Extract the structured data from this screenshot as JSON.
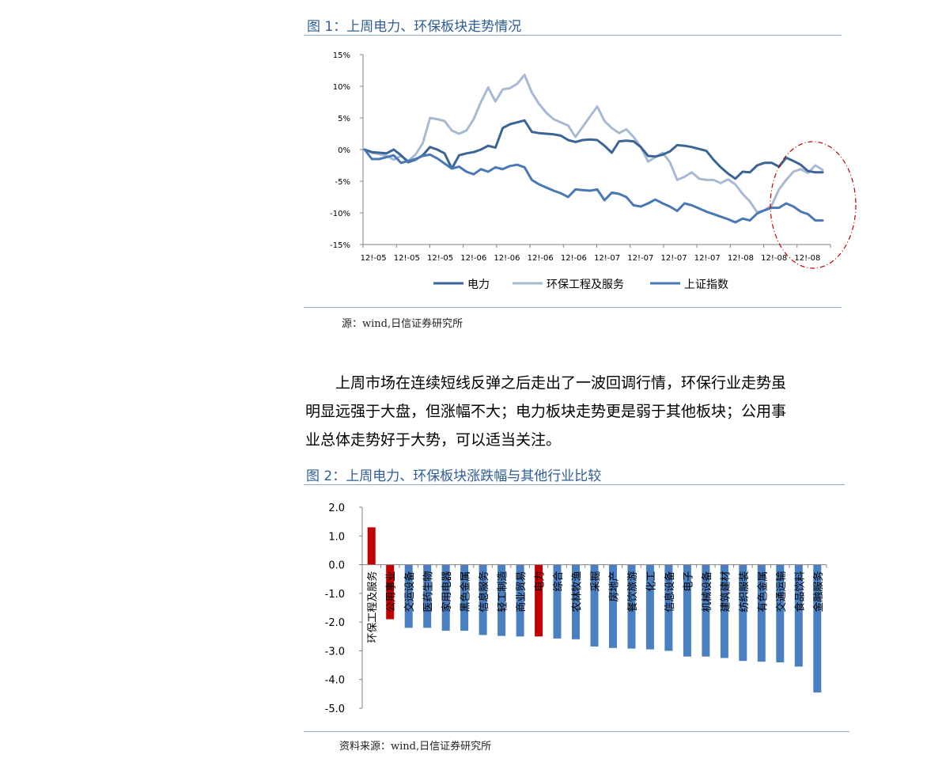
{
  "figure1": {
    "title": "图 1：上周电力、环保板块走势情况",
    "source": "源：wind,日信证券研究所"
  },
  "paragraph": {
    "lines": [
      "上周市场在连续短线反弹之后走出了一波回调行情，环保行业走势虽",
      "明显远强于大盘，但涨幅不大；电力板块走势更是弱于其他板块；公用事",
      "业总体走势好于大势，可以适当关注。"
    ]
  },
  "figure2": {
    "title": "图 2：上周电力、环保板块涨跌幅与其他行业比较",
    "source": "资料来源：wind,日信证券研究所"
  },
  "colors": {
    "dianli": "#3a6595",
    "huanbao": "#a7bad3",
    "shangzheng": "#4978b4",
    "bar_blue": "#4a7fc1",
    "bar_red": "#c00000",
    "title_blue": "#2e5c96"
  },
  "chart_data": [
    {
      "type": "line",
      "title": "",
      "xlabel": "",
      "ylabel": "",
      "y_ticks": [
        "15%",
        "10%",
        "5%",
        "0%",
        "-5%",
        "-10%",
        "-15%"
      ],
      "ylim": [
        -15,
        15
      ],
      "x_ticks": [
        "12!-05",
        "12!-05",
        "12!-05",
        "12!-06",
        "12!-06",
        "12!-06",
        "12!-06",
        "12!-07",
        "12!-07",
        "12!-07",
        "12!-07",
        "12!-08",
        "12!-08",
        "12!-08"
      ],
      "legend_position": "bottom",
      "series": [
        {
          "name": "电力",
          "values": [
            0,
            -0.4,
            -0.5,
            -0.6,
            0,
            -0.9,
            -2.0,
            -1.6,
            -0.9,
            0.4,
            0,
            -0.6,
            -3.0,
            -0.9,
            -0.6,
            -0.4,
            0,
            0.6,
            0.3,
            3.4,
            4.0,
            4.3,
            4.6,
            2.8,
            2.6,
            2.5,
            2.4,
            2.2,
            1.5,
            1.2,
            1.5,
            1.6,
            1.5,
            0.6,
            -0.5,
            1.3,
            1.4,
            1.3,
            0.4,
            -1.0,
            -1.1,
            -0.8,
            -0.3,
            0.7,
            0.6,
            0.4,
            0.1,
            -0.2,
            -1.6,
            -2.8,
            -3.8,
            -4.6,
            -3.5,
            -3.6,
            -2.5,
            -2.1,
            -2.1,
            -2.7,
            -1.3,
            -1.8,
            -2.4,
            -3.4,
            -3.6,
            -3.6
          ]
        },
        {
          "name": "环保工程及服务",
          "values": [
            0,
            -0.5,
            -0.7,
            -1.0,
            -1.6,
            -1.0,
            -1.8,
            -0.8,
            1.0,
            5.0,
            4.8,
            4.5,
            3.0,
            2.5,
            3.0,
            4.8,
            7.5,
            9.8,
            7.6,
            9.5,
            9.7,
            10.4,
            11.8,
            9.0,
            7.2,
            5.8,
            4.8,
            4.3,
            3.8,
            2.0,
            3.6,
            5.2,
            6.8,
            4.5,
            3.4,
            2.6,
            3.2,
            2.0,
            0.4,
            -1.9,
            -1.2,
            -0.5,
            -2.0,
            -4.8,
            -4.3,
            -3.6,
            -4.6,
            -4.8,
            -4.8,
            -5.3,
            -4.7,
            -5.5,
            -7.0,
            -8.2,
            -9.9,
            -9.6,
            -8.8,
            -6.3,
            -4.8,
            -3.5,
            -3.1,
            -3.7,
            -2.5,
            -3.2
          ]
        },
        {
          "name": "上证指数",
          "values": [
            0,
            -1.5,
            -1.5,
            -1.2,
            -0.9,
            -2.1,
            -1.8,
            -1.5,
            -1.0,
            -0.8,
            -1.4,
            -2.2,
            -3.0,
            -2.7,
            -3.5,
            -3.9,
            -3.1,
            -3.5,
            -2.8,
            -3.1,
            -2.6,
            -2.4,
            -2.8,
            -4.8,
            -5.5,
            -6.0,
            -6.5,
            -6.9,
            -7.5,
            -6.3,
            -6.4,
            -6.5,
            -6.3,
            -8.0,
            -6.8,
            -7.0,
            -7.5,
            -8.8,
            -9.0,
            -8.5,
            -7.9,
            -8.5,
            -9.0,
            -9.7,
            -8.5,
            -8.8,
            -9.3,
            -9.8,
            -10.2,
            -10.6,
            -11.0,
            -11.5,
            -10.9,
            -11.2,
            -10.1,
            -9.6,
            -9.2,
            -9.2,
            -8.5,
            -9.0,
            -9.8,
            -10.2,
            -11.2,
            -11.2
          ]
        }
      ]
    },
    {
      "type": "bar",
      "title": "",
      "xlabel": "",
      "ylabel": "",
      "y_ticks": [
        "2.0",
        "1.0",
        "0.0",
        "-1.0",
        "-2.0",
        "-3.0",
        "-4.0",
        "-5.0"
      ],
      "ylim": [
        -5,
        2
      ],
      "categories": [
        "环保工程及服务",
        "公用事业",
        "交运设备",
        "医药生物",
        "家用电器",
        "黑色金属",
        "信息服务",
        "轻工制造",
        "商业贸易",
        "电力",
        "综合",
        "农林牧渔",
        "采掘",
        "房地产",
        "餐饮旅游",
        "化工",
        "信息设备",
        "电子",
        "机械设备",
        "建筑建材",
        "纺织服装",
        "有色金属",
        "交通运输",
        "食品饮料",
        "金融服务"
      ],
      "values": [
        1.3,
        -1.9,
        -2.2,
        -2.2,
        -2.3,
        -2.3,
        -2.45,
        -2.48,
        -2.5,
        -2.5,
        -2.57,
        -2.6,
        -2.85,
        -2.9,
        -2.92,
        -2.95,
        -3.0,
        -3.2,
        -3.2,
        -3.25,
        -3.35,
        -3.38,
        -3.4,
        -3.55,
        -4.45
      ],
      "highlight": [
        "环保工程及服务",
        "公用事业",
        "电力"
      ]
    }
  ]
}
